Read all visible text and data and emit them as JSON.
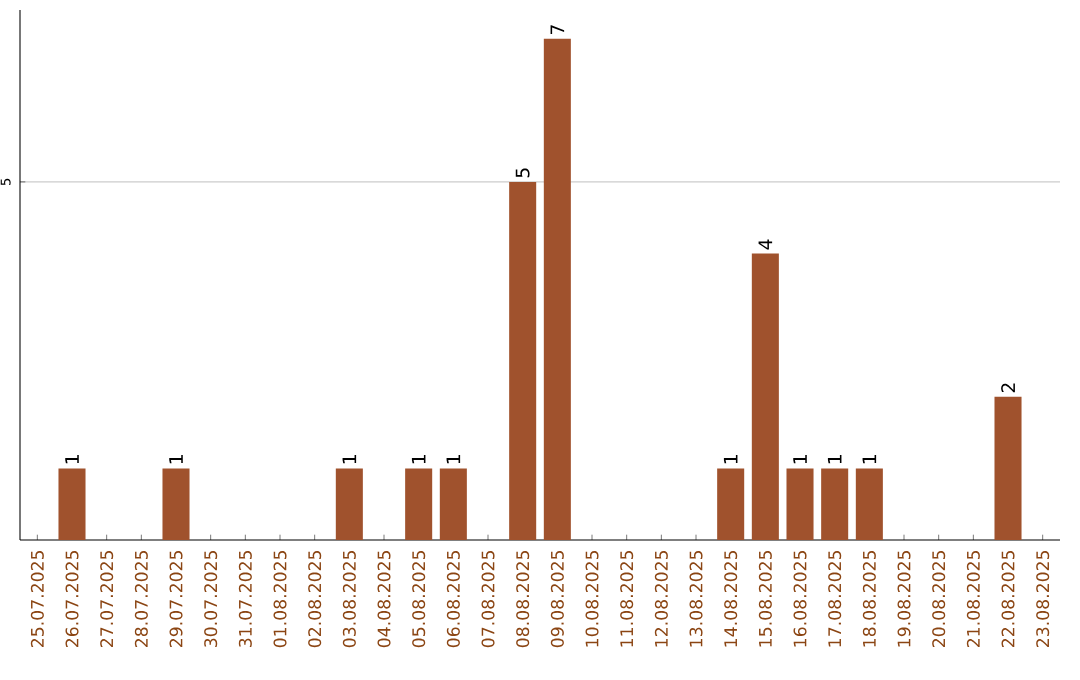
{
  "chart_data": {
    "type": "bar",
    "categories": [
      "25.07.2025",
      "26.07.2025",
      "27.07.2025",
      "28.07.2025",
      "29.07.2025",
      "30.07.2025",
      "31.07.2025",
      "01.08.2025",
      "02.08.2025",
      "03.08.2025",
      "04.08.2025",
      "05.08.2025",
      "06.08.2025",
      "07.08.2025",
      "08.08.2025",
      "09.08.2025",
      "10.08.2025",
      "11.08.2025",
      "12.08.2025",
      "13.08.2025",
      "14.08.2025",
      "15.08.2025",
      "16.08.2025",
      "17.08.2025",
      "18.08.2025",
      "19.08.2025",
      "20.08.2025",
      "21.08.2025",
      "22.08.2025",
      "23.08.2025"
    ],
    "values": [
      0,
      1,
      0,
      0,
      1,
      0,
      0,
      0,
      0,
      1,
      0,
      1,
      1,
      0,
      5,
      7,
      0,
      0,
      0,
      0,
      1,
      4,
      1,
      1,
      1,
      0,
      0,
      0,
      2,
      0
    ],
    "value_labels": [
      null,
      "1",
      null,
      null,
      "1",
      null,
      null,
      null,
      null,
      "1",
      null,
      "1",
      "1",
      null,
      "5",
      "7",
      null,
      null,
      null,
      null,
      "1",
      "4",
      "1",
      "1",
      "1",
      null,
      null,
      null,
      "2",
      null
    ],
    "color": "#a0522d",
    "ylim": [
      0,
      7.4
    ],
    "yticks": [
      5
    ],
    "grid": "y"
  }
}
